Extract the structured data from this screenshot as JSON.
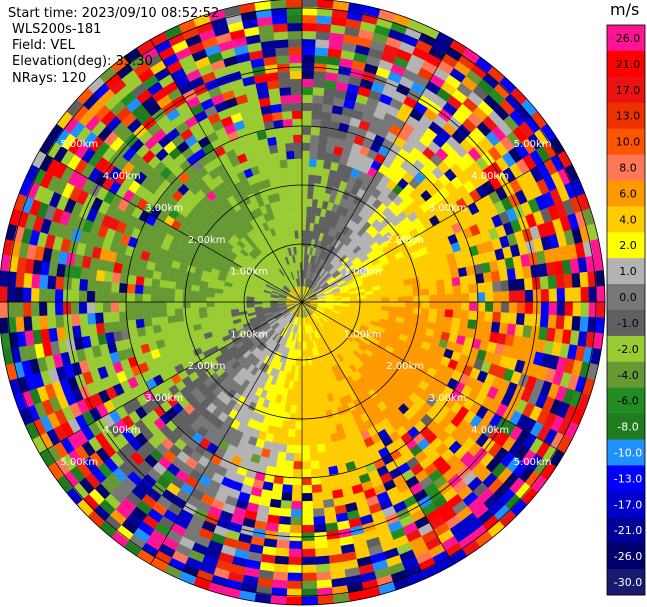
{
  "header": {
    "start_time": "Start time: 2023/09/10 08:52:52",
    "instrument": "WLS200s-181",
    "field": "Field: VEL",
    "elevation": "Elevation(deg): 35.30",
    "nrays": "NRays: 120"
  },
  "chart_data": {
    "type": "ppi",
    "field": "VEL",
    "units": "m/s",
    "elevation_deg": 35.3,
    "n_rays": 120,
    "range_ring_labels": [
      "1.00km",
      "2.00km",
      "3.00km",
      "4.00km",
      "5.00km"
    ],
    "colorbar": {
      "units_label": "m/s",
      "ticks": [
        "26.0",
        "21.0",
        "17.0",
        "13.0",
        "10.0",
        "8.0",
        "6.0",
        "4.0",
        "2.0",
        "1.0",
        "0.0",
        "-1.0",
        "-2.0",
        "-4.0",
        "-6.0",
        "-8.0",
        "-10.0",
        "-13.0",
        "-17.0",
        "-21.0",
        "-26.0",
        "-30.0"
      ],
      "colors": [
        "#ff1493",
        "#ff0000",
        "#ee1111",
        "#ee3300",
        "#ff5500",
        "#ff7755",
        "#ff9900",
        "#ffcc00",
        "#ffff00",
        "#b3b3b3",
        "#777777",
        "#606060",
        "#99cc33",
        "#669933",
        "#228b22",
        "#1e7b1e",
        "#1e90ff",
        "#0000ff",
        "#0000cd",
        "#000099",
        "#00006a",
        "#191970"
      ]
    },
    "pattern_description_values": {
      "inner_positive_ring_m_s": 2.0,
      "inner_negative_ring_m_s": -4.0,
      "outer_noise": true
    }
  }
}
